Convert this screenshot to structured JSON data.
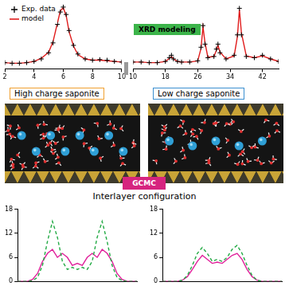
{
  "chart_data": [
    {
      "type": "line",
      "annotations": [
        "XRD modeling"
      ],
      "legend": "top-left",
      "grid": false,
      "tick_labels": "x",
      "x": [
        2,
        2.5,
        3,
        3.5,
        4,
        4.5,
        5,
        5.3,
        5.6,
        5.8,
        6,
        6.2,
        6.4,
        6.7,
        7,
        7.5,
        8,
        8.5,
        9,
        9.5,
        10,
        12,
        14,
        16,
        18,
        19,
        19.5,
        20,
        21,
        22,
        24,
        26,
        26.8,
        27.3,
        27.8,
        28.5,
        30,
        30.6,
        31,
        31.5,
        33,
        35,
        35.8,
        36.3,
        36.8,
        38,
        40,
        42,
        44,
        46
      ],
      "axis_break": 10,
      "xlim": [
        2,
        46
      ],
      "xticks": [
        2,
        4,
        6,
        8,
        10,
        18,
        26,
        34,
        42
      ],
      "ylim": [
        0,
        1.05
      ],
      "series": [
        {
          "name": "Exp. data",
          "color": "#000000",
          "marker": "plus",
          "line_style": "none",
          "values": [
            0.1,
            0.09,
            0.09,
            0.1,
            0.12,
            0.16,
            0.26,
            0.42,
            0.72,
            0.92,
            1.0,
            0.88,
            0.62,
            0.38,
            0.24,
            0.16,
            0.14,
            0.15,
            0.14,
            0.12,
            0.11,
            0.11,
            0.1,
            0.1,
            0.12,
            0.18,
            0.22,
            0.16,
            0.12,
            0.11,
            0.11,
            0.13,
            0.35,
            0.7,
            0.4,
            0.18,
            0.2,
            0.32,
            0.4,
            0.26,
            0.16,
            0.22,
            0.55,
            0.98,
            0.55,
            0.2,
            0.18,
            0.22,
            0.16,
            0.12
          ]
        },
        {
          "name": "model",
          "color": "#e01b1b",
          "line_style": "solid",
          "values": [
            0.1,
            0.09,
            0.09,
            0.1,
            0.12,
            0.17,
            0.27,
            0.44,
            0.74,
            0.94,
            0.99,
            0.86,
            0.6,
            0.37,
            0.23,
            0.16,
            0.14,
            0.14,
            0.13,
            0.12,
            0.11,
            0.11,
            0.1,
            0.1,
            0.12,
            0.17,
            0.2,
            0.16,
            0.12,
            0.11,
            0.11,
            0.13,
            0.33,
            0.68,
            0.42,
            0.19,
            0.2,
            0.3,
            0.38,
            0.27,
            0.16,
            0.21,
            0.52,
            0.96,
            0.58,
            0.21,
            0.18,
            0.21,
            0.16,
            0.12
          ]
        }
      ]
    },
    {
      "type": "line",
      "grid": false,
      "tick_labels": "y",
      "x": [
        0,
        0.5,
        1,
        1.5,
        2,
        2.5,
        3,
        3.5,
        4,
        4.5,
        5,
        5.5,
        6,
        6.5,
        7,
        7.5,
        8,
        8.5,
        9,
        9.5,
        10,
        10.5,
        11,
        11.5,
        12
      ],
      "xlim": [
        0,
        12
      ],
      "ylim": [
        0,
        18
      ],
      "yticks": [
        0,
        6,
        12,
        18
      ],
      "series": [
        {
          "color": "#22aa44",
          "line_style": "dashed",
          "values": [
            0,
            0,
            0,
            0.2,
            1,
            4,
            10,
            15,
            11,
            5,
            3,
            3.5,
            3,
            3.5,
            3,
            5,
            11,
            15,
            10,
            4,
            1,
            0.2,
            0,
            0,
            0
          ]
        },
        {
          "color": "#e0209a",
          "line_style": "solid",
          "values": [
            0,
            0,
            0,
            0.5,
            2,
            5,
            7,
            8,
            6,
            7,
            6,
            4,
            4.5,
            4,
            6,
            7,
            6,
            8,
            7,
            5,
            2,
            0.5,
            0,
            0,
            0
          ]
        }
      ]
    },
    {
      "type": "line",
      "grid": false,
      "tick_labels": "y",
      "x": [
        0,
        0.5,
        1,
        1.5,
        2,
        2.5,
        3,
        3.5,
        4,
        4.5,
        5,
        5.5,
        6,
        6.5,
        7,
        7.5,
        8,
        8.5,
        9,
        9.5,
        10,
        10.5,
        11,
        11.5,
        12
      ],
      "xlim": [
        0,
        12
      ],
      "ylim": [
        0,
        18
      ],
      "yticks": [
        0,
        6,
        12,
        18
      ],
      "series": [
        {
          "color": "#22aa44",
          "line_style": "dashed",
          "values": [
            0,
            0,
            0,
            0,
            0.3,
            1.5,
            4,
            7,
            8.5,
            7,
            5,
            5.5,
            5,
            6,
            8,
            9,
            7,
            4,
            1.5,
            0.3,
            0,
            0,
            0,
            0,
            0
          ]
        },
        {
          "color": "#e0209a",
          "line_style": "solid",
          "values": [
            0,
            0,
            0,
            0,
            0.3,
            1.2,
            3,
            5,
            6.5,
            5.5,
            4.5,
            4.8,
            4.5,
            5.5,
            6.5,
            7,
            5.5,
            3,
            1.2,
            0.3,
            0,
            0,
            0,
            0,
            0
          ]
        }
      ]
    }
  ],
  "diagram": {
    "panels": [
      {
        "title": "High charge saponite",
        "color": "#f0a030"
      },
      {
        "title": "Low charge saponite",
        "color": "#3a8fd0"
      }
    ],
    "method": "GCMC",
    "section_title": "Interlayer configuration"
  }
}
